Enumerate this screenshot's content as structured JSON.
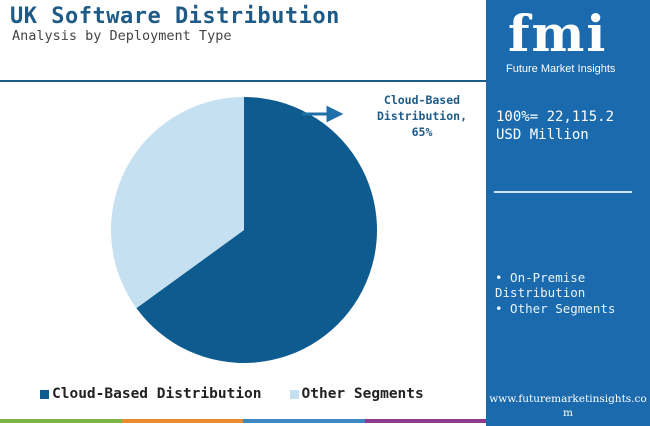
{
  "header": {
    "title": "UK Software Distribution",
    "subtitle": "Analysis by Deployment Type"
  },
  "chart_data": {
    "type": "pie",
    "categories": [
      "Cloud-Based Distribution",
      "Other Segments"
    ],
    "values": [
      65,
      35
    ],
    "colors": [
      "#0e5c8f",
      "#c5e0f1"
    ],
    "callout": {
      "line1": "Cloud-Based",
      "line2": "Distribution,",
      "line3": "65%"
    },
    "legend": [
      "Cloud-Based Distribution",
      "Other Segments"
    ]
  },
  "side_panel": {
    "logo": "fmi",
    "logo_sub": "Future Market Insights",
    "total_line1": "100%= 22,115.2",
    "total_line2": "USD Million",
    "bullets": [
      "• On-Premise Distribution",
      "• Other Segments"
    ],
    "url": "www.futuremarketinsights.com"
  },
  "bottom_bar_colors": [
    "#7ab648",
    "#e98b2e",
    "#3b88c3",
    "#8d3b8e"
  ]
}
